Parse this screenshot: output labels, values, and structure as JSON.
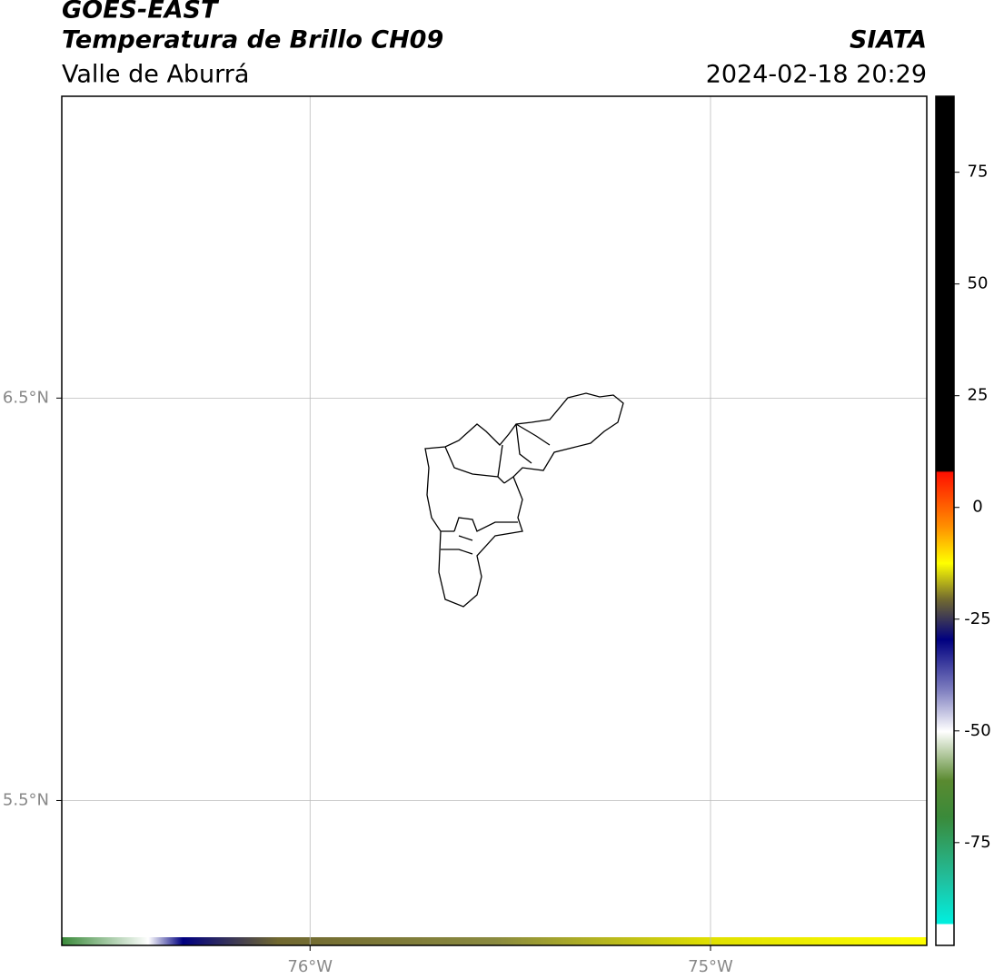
{
  "chart_data": {
    "type": "map",
    "title": "GOES-EAST",
    "subtitle": "Temperatura de Brillo CH09",
    "source": "SIATA",
    "region": "Valle de Aburrá",
    "datetime": "2024-02-18 20:29",
    "xlim": [
      -76.62,
      -74.46
    ],
    "ylim": [
      5.14,
      7.25
    ],
    "xticks": [
      {
        "value": -76,
        "label": "76°W"
      },
      {
        "value": -75,
        "label": "75°W"
      }
    ],
    "yticks": [
      {
        "value": 5.5,
        "label": "5.5°N"
      },
      {
        "value": 6.5,
        "label": "6.5°N"
      }
    ],
    "grid": true,
    "colorbar": {
      "lim": [
        -98,
        92
      ],
      "ticks": [
        -75,
        -50,
        -25,
        0,
        25,
        50,
        75
      ]
    }
  }
}
